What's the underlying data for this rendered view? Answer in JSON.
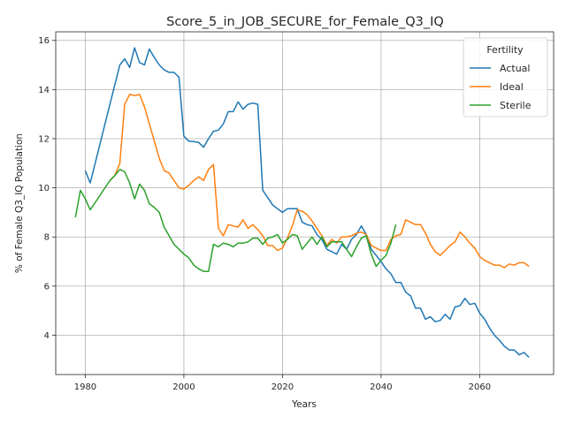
{
  "chart_data": {
    "type": "line",
    "title": "Score_5_in_JOB_SECURE_for_Female_Q3_IQ",
    "xlabel": "Years",
    "ylabel": "% of Female Q3_IQ Population",
    "xlim": [
      1974,
      2075
    ],
    "ylim": [
      2.4,
      16.35
    ],
    "xticks": [
      1980,
      2000,
      2020,
      2040,
      2060
    ],
    "yticks": [
      4,
      6,
      8,
      10,
      12,
      14,
      16
    ],
    "grid": true,
    "legend": {
      "title": "Fertility",
      "position": "top-right"
    },
    "series": [
      {
        "name": "Actual",
        "color": "#1f77b4",
        "points": [
          [
            1980,
            10.7
          ],
          [
            1981,
            10.2
          ],
          [
            1982,
            11.0
          ],
          [
            1983,
            11.8
          ],
          [
            1984,
            12.6
          ],
          [
            1985,
            13.4
          ],
          [
            1986,
            14.2
          ],
          [
            1987,
            15.0
          ],
          [
            1988,
            15.25
          ],
          [
            1989,
            14.9
          ],
          [
            1990,
            15.7
          ],
          [
            1991,
            15.1
          ],
          [
            1992,
            15.0
          ],
          [
            1993,
            15.65
          ],
          [
            1994,
            15.3
          ],
          [
            1995,
            15.0
          ],
          [
            1996,
            14.8
          ],
          [
            1997,
            14.7
          ],
          [
            1998,
            14.7
          ],
          [
            1999,
            14.5
          ],
          [
            2000,
            12.1
          ],
          [
            2001,
            11.9
          ],
          [
            2002,
            11.88
          ],
          [
            2003,
            11.85
          ],
          [
            2004,
            11.65
          ],
          [
            2005,
            12.0
          ],
          [
            2006,
            12.3
          ],
          [
            2007,
            12.35
          ],
          [
            2008,
            12.6
          ],
          [
            2009,
            13.1
          ],
          [
            2010,
            13.1
          ],
          [
            2011,
            13.5
          ],
          [
            2012,
            13.2
          ],
          [
            2013,
            13.4
          ],
          [
            2014,
            13.45
          ],
          [
            2015,
            13.4
          ],
          [
            2016,
            9.9
          ],
          [
            2017,
            9.6
          ],
          [
            2018,
            9.3
          ],
          [
            2019,
            9.15
          ],
          [
            2020,
            9.0
          ],
          [
            2021,
            9.15
          ],
          [
            2022,
            9.15
          ],
          [
            2023,
            9.15
          ],
          [
            2024,
            8.6
          ],
          [
            2025,
            8.5
          ],
          [
            2026,
            8.45
          ],
          [
            2027,
            8.1
          ],
          [
            2028,
            7.9
          ],
          [
            2029,
            7.5
          ],
          [
            2030,
            7.4
          ],
          [
            2031,
            7.3
          ],
          [
            2032,
            7.7
          ],
          [
            2033,
            7.5
          ],
          [
            2034,
            7.9
          ],
          [
            2035,
            8.1
          ],
          [
            2036,
            8.45
          ],
          [
            2037,
            8.1
          ],
          [
            2038,
            7.5
          ],
          [
            2039,
            7.25
          ],
          [
            2040,
            7.0
          ],
          [
            2041,
            6.7
          ],
          [
            2042,
            6.5
          ],
          [
            2043,
            6.15
          ],
          [
            2044,
            6.15
          ],
          [
            2045,
            5.75
          ],
          [
            2046,
            5.6
          ],
          [
            2047,
            5.1
          ],
          [
            2048,
            5.1
          ],
          [
            2049,
            4.65
          ],
          [
            2050,
            4.75
          ],
          [
            2051,
            4.55
          ],
          [
            2052,
            4.6
          ],
          [
            2053,
            4.85
          ],
          [
            2054,
            4.65
          ],
          [
            2055,
            5.15
          ],
          [
            2056,
            5.2
          ],
          [
            2057,
            5.5
          ],
          [
            2058,
            5.25
          ],
          [
            2059,
            5.3
          ],
          [
            2060,
            4.9
          ],
          [
            2061,
            4.65
          ],
          [
            2062,
            4.3
          ],
          [
            2063,
            4.0
          ],
          [
            2064,
            3.8
          ],
          [
            2065,
            3.55
          ],
          [
            2066,
            3.4
          ],
          [
            2067,
            3.4
          ],
          [
            2068,
            3.2
          ],
          [
            2069,
            3.3
          ],
          [
            2070,
            3.1
          ]
        ]
      },
      {
        "name": "Ideal",
        "color": "#ff7f0e",
        "points": [
          [
            1985,
            10.3
          ],
          [
            1986,
            10.5
          ],
          [
            1987,
            11.0
          ],
          [
            1988,
            13.4
          ],
          [
            1989,
            13.8
          ],
          [
            1990,
            13.75
          ],
          [
            1991,
            13.8
          ],
          [
            1992,
            13.3
          ],
          [
            1993,
            12.6
          ],
          [
            1994,
            11.9
          ],
          [
            1995,
            11.2
          ],
          [
            1996,
            10.7
          ],
          [
            1997,
            10.6
          ],
          [
            1998,
            10.3
          ],
          [
            1999,
            10.0
          ],
          [
            2000,
            9.95
          ],
          [
            2001,
            10.1
          ],
          [
            2002,
            10.3
          ],
          [
            2003,
            10.45
          ],
          [
            2004,
            10.3
          ],
          [
            2005,
            10.75
          ],
          [
            2006,
            10.95
          ],
          [
            2007,
            8.35
          ],
          [
            2008,
            8.05
          ],
          [
            2009,
            8.5
          ],
          [
            2010,
            8.45
          ],
          [
            2011,
            8.4
          ],
          [
            2012,
            8.7
          ],
          [
            2013,
            8.35
          ],
          [
            2014,
            8.5
          ],
          [
            2015,
            8.3
          ],
          [
            2016,
            8.05
          ],
          [
            2017,
            7.65
          ],
          [
            2018,
            7.65
          ],
          [
            2019,
            7.45
          ],
          [
            2020,
            7.55
          ],
          [
            2021,
            7.95
          ],
          [
            2022,
            8.45
          ],
          [
            2023,
            9.1
          ],
          [
            2024,
            9.05
          ],
          [
            2025,
            8.9
          ],
          [
            2026,
            8.65
          ],
          [
            2027,
            8.35
          ],
          [
            2028,
            8.05
          ],
          [
            2029,
            7.65
          ],
          [
            2030,
            7.9
          ],
          [
            2031,
            7.75
          ],
          [
            2032,
            8.0
          ],
          [
            2033,
            8.0
          ],
          [
            2034,
            8.05
          ],
          [
            2035,
            8.15
          ],
          [
            2036,
            8.2
          ],
          [
            2037,
            8.1
          ],
          [
            2038,
            7.65
          ],
          [
            2039,
            7.55
          ],
          [
            2040,
            7.45
          ],
          [
            2041,
            7.45
          ],
          [
            2042,
            7.9
          ],
          [
            2043,
            8.05
          ],
          [
            2044,
            8.1
          ],
          [
            2045,
            8.7
          ],
          [
            2046,
            8.6
          ],
          [
            2047,
            8.5
          ],
          [
            2048,
            8.5
          ],
          [
            2049,
            8.15
          ],
          [
            2050,
            7.7
          ],
          [
            2051,
            7.4
          ],
          [
            2052,
            7.25
          ],
          [
            2053,
            7.45
          ],
          [
            2054,
            7.65
          ],
          [
            2055,
            7.8
          ],
          [
            2056,
            8.2
          ],
          [
            2057,
            8.0
          ],
          [
            2058,
            7.75
          ],
          [
            2059,
            7.55
          ],
          [
            2060,
            7.2
          ],
          [
            2061,
            7.05
          ],
          [
            2062,
            6.95
          ],
          [
            2063,
            6.85
          ],
          [
            2064,
            6.85
          ],
          [
            2065,
            6.75
          ],
          [
            2066,
            6.9
          ],
          [
            2067,
            6.85
          ],
          [
            2068,
            6.95
          ],
          [
            2069,
            6.95
          ],
          [
            2070,
            6.8
          ]
        ]
      },
      {
        "name": "Sterile",
        "color": "#2ca02c",
        "points": [
          [
            1978,
            8.8
          ],
          [
            1979,
            9.9
          ],
          [
            1980,
            9.55
          ],
          [
            1981,
            9.1
          ],
          [
            1982,
            9.4
          ],
          [
            1983,
            9.7
          ],
          [
            1984,
            10.0
          ],
          [
            1985,
            10.3
          ],
          [
            1986,
            10.5
          ],
          [
            1987,
            10.75
          ],
          [
            1988,
            10.65
          ],
          [
            1989,
            10.2
          ],
          [
            1990,
            9.55
          ],
          [
            1991,
            10.15
          ],
          [
            1992,
            9.9
          ],
          [
            1993,
            9.35
          ],
          [
            1994,
            9.2
          ],
          [
            1995,
            9.0
          ],
          [
            1996,
            8.4
          ],
          [
            1997,
            8.05
          ],
          [
            1998,
            7.7
          ],
          [
            1999,
            7.5
          ],
          [
            2000,
            7.3
          ],
          [
            2001,
            7.15
          ],
          [
            2002,
            6.85
          ],
          [
            2003,
            6.7
          ],
          [
            2004,
            6.6
          ],
          [
            2005,
            6.6
          ],
          [
            2006,
            7.7
          ],
          [
            2007,
            7.6
          ],
          [
            2008,
            7.75
          ],
          [
            2009,
            7.7
          ],
          [
            2010,
            7.6
          ],
          [
            2011,
            7.75
          ],
          [
            2012,
            7.75
          ],
          [
            2013,
            7.8
          ],
          [
            2014,
            7.95
          ],
          [
            2015,
            7.95
          ],
          [
            2016,
            7.7
          ],
          [
            2017,
            7.95
          ],
          [
            2018,
            8.0
          ],
          [
            2019,
            8.1
          ],
          [
            2020,
            7.75
          ],
          [
            2021,
            7.9
          ],
          [
            2022,
            8.1
          ],
          [
            2023,
            8.05
          ],
          [
            2024,
            7.5
          ],
          [
            2025,
            7.75
          ],
          [
            2026,
            8.0
          ],
          [
            2027,
            7.7
          ],
          [
            2028,
            8.0
          ],
          [
            2029,
            7.6
          ],
          [
            2030,
            7.8
          ],
          [
            2031,
            7.8
          ],
          [
            2032,
            7.8
          ],
          [
            2033,
            7.5
          ],
          [
            2034,
            7.2
          ],
          [
            2035,
            7.6
          ],
          [
            2036,
            7.95
          ],
          [
            2037,
            8.05
          ],
          [
            2038,
            7.3
          ],
          [
            2039,
            6.8
          ],
          [
            2040,
            7.05
          ],
          [
            2041,
            7.25
          ],
          [
            2042,
            7.75
          ],
          [
            2043,
            8.5
          ]
        ]
      }
    ]
  }
}
